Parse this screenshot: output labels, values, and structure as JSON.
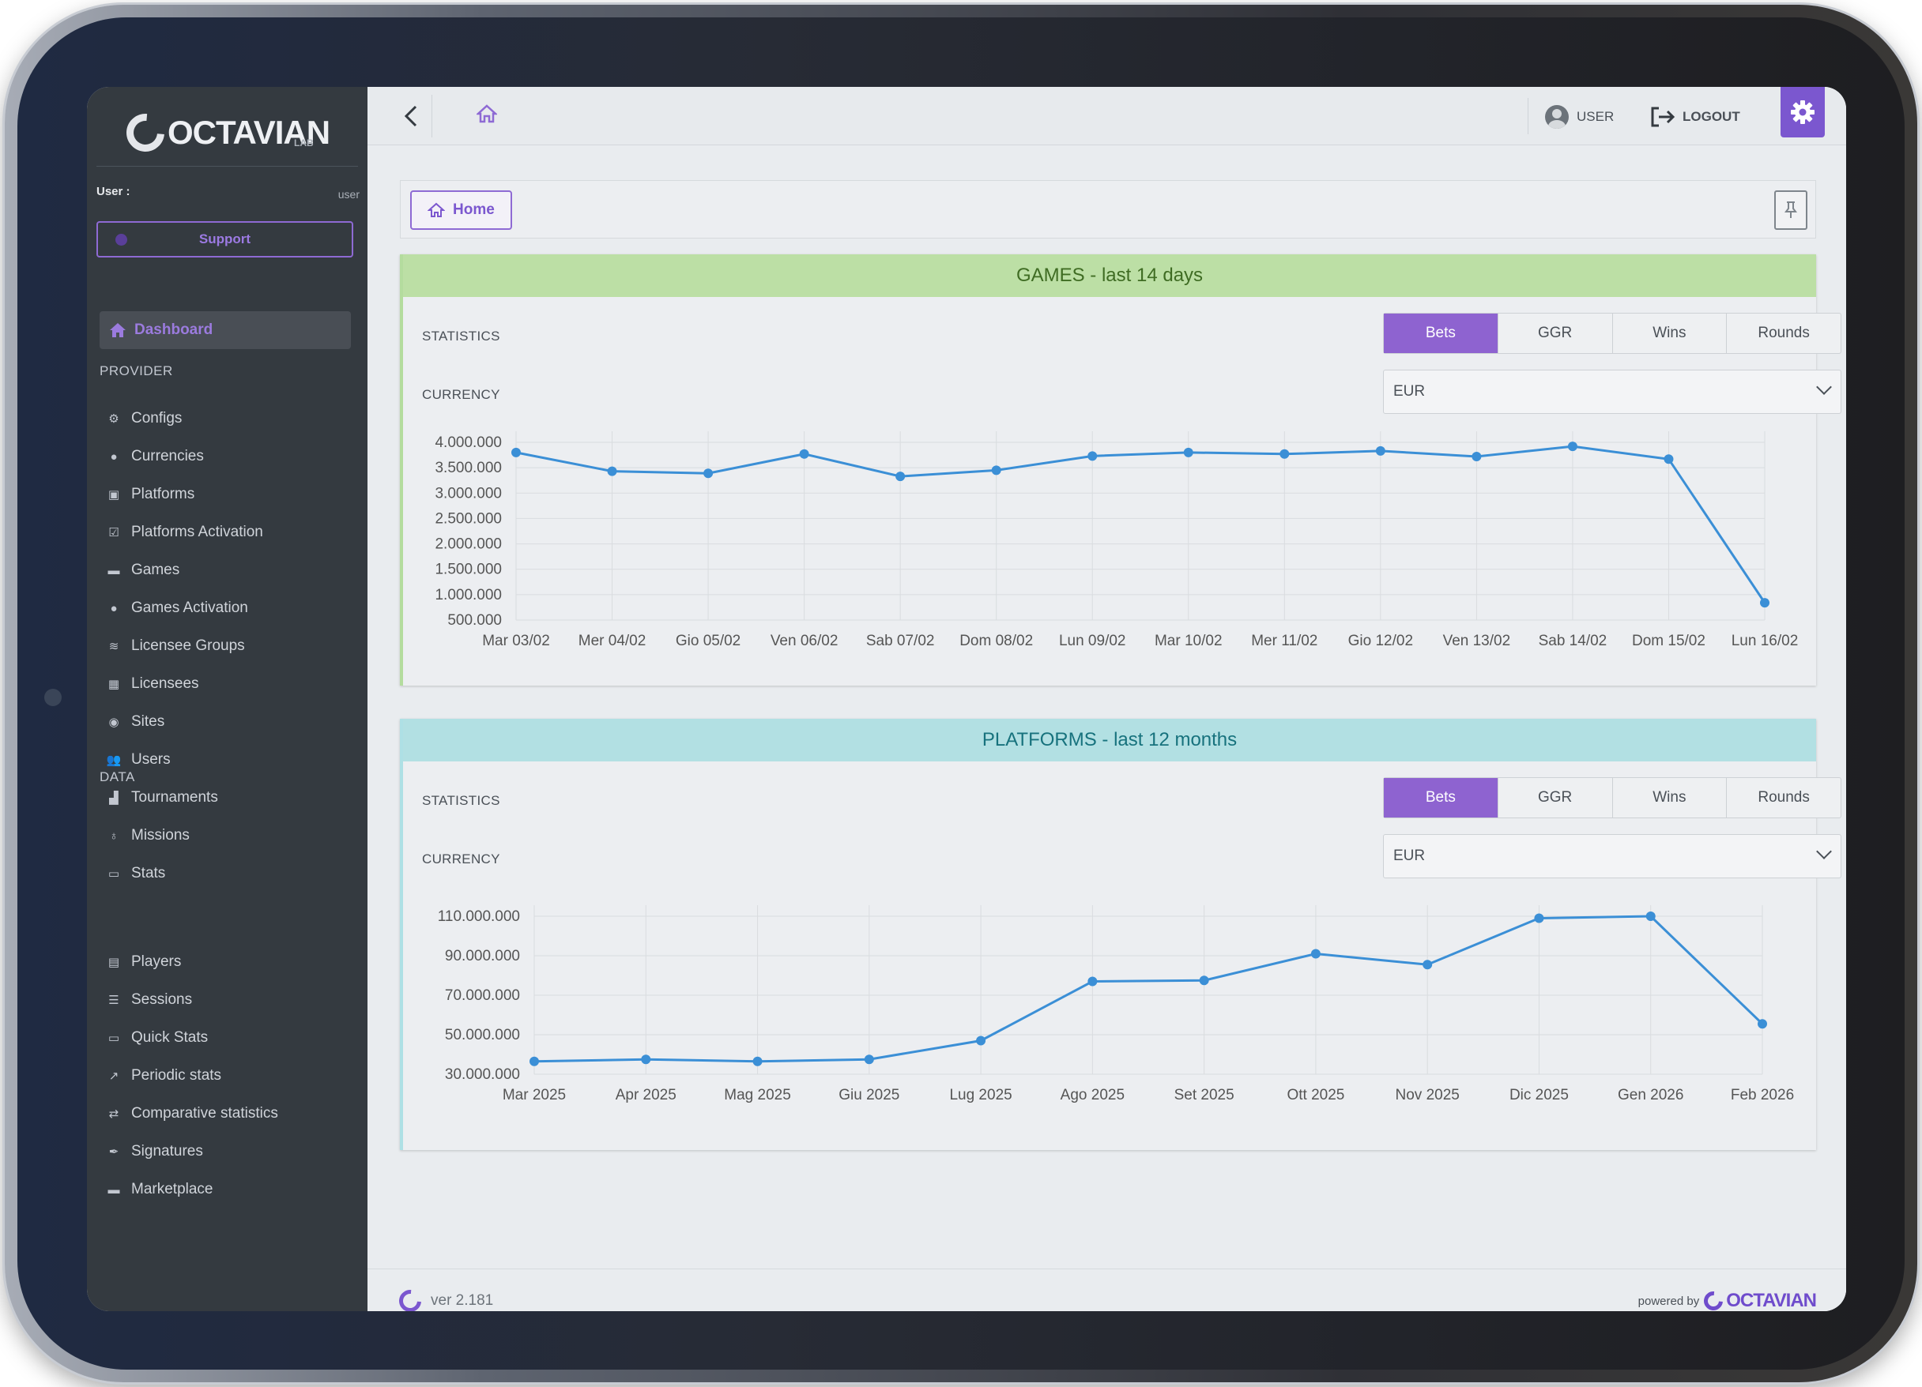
{
  "brand": {
    "name": "OCTAVIAN",
    "sub": "LAB",
    "powered_by": "powered by",
    "powered_brand": "OCTAVIAN",
    "version": "ver 2.181"
  },
  "user_block": {
    "label": "User :",
    "value": "user",
    "support": "Support"
  },
  "sidebar": {
    "dashboard": "Dashboard",
    "provider_title": "PROVIDER",
    "provider_items": [
      {
        "label": "Configs",
        "icon": "cogs-icon"
      },
      {
        "label": "Currencies",
        "icon": "coin-icon"
      },
      {
        "label": "Platforms",
        "icon": "platforms-icon"
      },
      {
        "label": "Platforms Activation",
        "icon": "checkbox-icon"
      },
      {
        "label": "Games",
        "icon": "gamepad-icon"
      },
      {
        "label": "Games Activation",
        "icon": "check-circle-icon"
      },
      {
        "label": "Licensee Groups",
        "icon": "layers-icon"
      },
      {
        "label": "Licensees",
        "icon": "building-icon"
      },
      {
        "label": "Sites",
        "icon": "compass-icon"
      },
      {
        "label": "Users",
        "icon": "users-icon"
      },
      {
        "label": "Tournaments",
        "icon": "podium-icon"
      },
      {
        "label": "Missions",
        "icon": "medal-icon"
      },
      {
        "label": "Stats",
        "icon": "panel-icon"
      }
    ],
    "data_title": "DATA",
    "data_items": [
      {
        "label": "Players",
        "icon": "players-icon"
      },
      {
        "label": "Sessions",
        "icon": "list-icon"
      },
      {
        "label": "Quick Stats",
        "icon": "window-icon"
      },
      {
        "label": "Periodic stats",
        "icon": "line-chart-icon"
      },
      {
        "label": "Comparative statistics",
        "icon": "compare-icon"
      },
      {
        "label": "Signatures",
        "icon": "pen-icon"
      },
      {
        "label": "Marketplace",
        "icon": "store-icon"
      }
    ]
  },
  "topbar": {
    "user_label": "USER",
    "logout_label": "LOGOUT"
  },
  "breadcrumb": {
    "home": "Home"
  },
  "colors": {
    "accent": "#7b57cf",
    "line": "#3b8fd6",
    "games_head": "#bcdfa5",
    "platforms_head": "#b2e0e3"
  },
  "games_card": {
    "title": "GAMES - last 14 days",
    "statistics_label": "STATISTICS",
    "currency_label": "CURRENCY",
    "tabs": [
      "Bets",
      "GGR",
      "Wins",
      "Rounds"
    ],
    "active_tab": "Bets",
    "currency": "EUR"
  },
  "platforms_card": {
    "title": "PLATFORMS - last 12 months",
    "statistics_label": "STATISTICS",
    "currency_label": "CURRENCY",
    "tabs": [
      "Bets",
      "GGR",
      "Wins",
      "Rounds"
    ],
    "active_tab": "Bets",
    "currency": "EUR"
  },
  "chart_data": [
    {
      "type": "line",
      "categories": [
        "Mar 03/02",
        "Mer 04/02",
        "Gio 05/02",
        "Ven 06/02",
        "Sab 07/02",
        "Dom 08/02",
        "Lun 09/02",
        "Mar 10/02",
        "Mer 11/02",
        "Gio 12/02",
        "Ven 13/02",
        "Sab 14/02",
        "Dom 15/02",
        "Lun 16/02"
      ],
      "values": [
        3800000,
        3430000,
        3390000,
        3770000,
        3330000,
        3450000,
        3730000,
        3800000,
        3770000,
        3830000,
        3720000,
        3920000,
        3670000,
        840000
      ],
      "yticks": [
        "4.000.000",
        "3.500.000",
        "3.000.000",
        "2.500.000",
        "2.000.000",
        "1.500.000",
        "1.000.000",
        "500.000"
      ],
      "ylim": [
        500000,
        4000000
      ],
      "grid": true
    },
    {
      "type": "line",
      "categories": [
        "Mar 2025",
        "Apr 2025",
        "Mag 2025",
        "Giu 2025",
        "Lug 2025",
        "Ago 2025",
        "Set 2025",
        "Ott 2025",
        "Nov 2025",
        "Dic 2025",
        "Gen 2026",
        "Feb 2026"
      ],
      "values": [
        36500000,
        37500000,
        36500000,
        37500000,
        47000000,
        77000000,
        77500000,
        91000000,
        85500000,
        109000000,
        110000000,
        55500000
      ],
      "yticks": [
        "110.000.000",
        "90.000.000",
        "70.000.000",
        "50.000.000",
        "30.000.000"
      ],
      "ylim": [
        30000000,
        110000000
      ],
      "grid": true
    }
  ]
}
